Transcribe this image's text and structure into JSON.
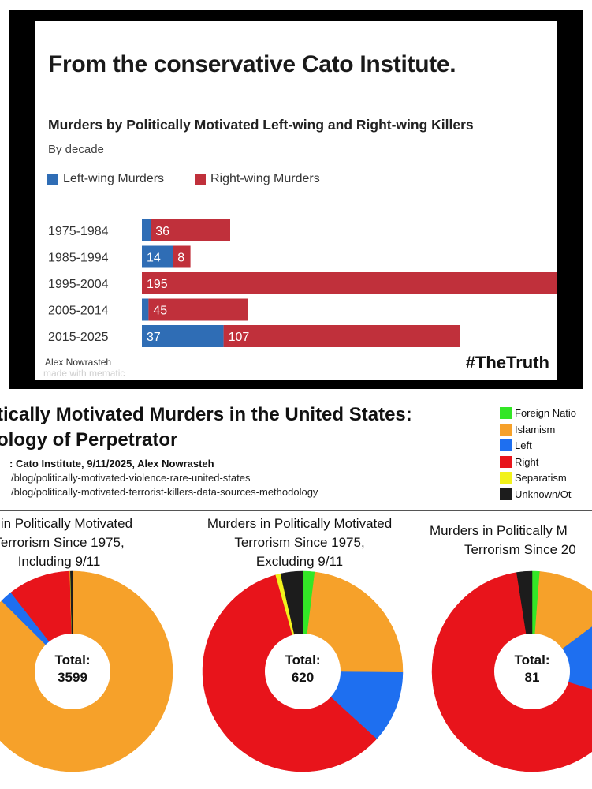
{
  "top": {
    "headline": "From the conservative Cato Institute.",
    "author": "Alex Nowrasteh",
    "watermark": "made with mematic",
    "hashtag": "#TheTruth"
  },
  "bottom": {
    "title_line1": "tically Motivated Murders in the United States:",
    "title_line2": "ology of Perpetrator",
    "source": ": Cato Institute, 9/11/2025, Alex Nowrasteh",
    "url1": "/blog/politically-motivated-violence-rare-united-states",
    "url2": "/blog/politically-motivated-terrorist-killers-data-sources-methodology"
  },
  "pie_titles": [
    [
      "rs in Politically Motivated",
      "Terrorism Since 1975,",
      "Including 9/11"
    ],
    [
      "Murders in Politically Motivated",
      "Terrorism Since 1975,",
      "Excluding 9/11"
    ],
    [
      "Murders in Politically M",
      "Terrorism Since 20"
    ]
  ],
  "chart_data": [
    {
      "type": "bar",
      "title": "Murders by Politically Motivated Left-wing and Right-wing Killers",
      "subtitle": "By decade",
      "categories": [
        "1975-1984",
        "1985-1994",
        "1995-2004",
        "2005-2014",
        "2015-2025"
      ],
      "series": [
        {
          "name": "Left-wing Murders",
          "color": "#2f6db5",
          "values": [
            4,
            14,
            0,
            3,
            37
          ],
          "labels": [
            "",
            "14",
            "",
            "",
            "37"
          ]
        },
        {
          "name": "Right-wing Murders",
          "color": "#c0303b",
          "values": [
            36,
            8,
            195,
            45,
            107
          ],
          "labels": [
            "36",
            "8",
            "195",
            "45",
            "107"
          ]
        }
      ],
      "stacked": true,
      "legend": "top-left",
      "grid": false
    },
    {
      "type": "pie",
      "donut": true,
      "legend_title": "",
      "categories": [
        "Foreign Natio",
        "Islamism",
        "Left",
        "Right",
        "Separatism",
        "Unknown/Ot"
      ],
      "colors": [
        "#33e626",
        "#f6a12a",
        "#1e6ff0",
        "#e8141b",
        "#f2f21c",
        "#1c1c1c"
      ],
      "charts": [
        {
          "total_label": "Total:",
          "total": "3599",
          "values": [
            2,
            3145,
            72,
            365,
            3,
            12
          ]
        },
        {
          "total_label": "Total:",
          "total": "620",
          "values": [
            12,
            144,
            72,
            365,
            5,
            22
          ]
        },
        {
          "total_label": "Total:",
          "total": "81",
          "values": [
            1,
            11,
            12,
            55,
            0,
            2
          ]
        }
      ]
    }
  ]
}
